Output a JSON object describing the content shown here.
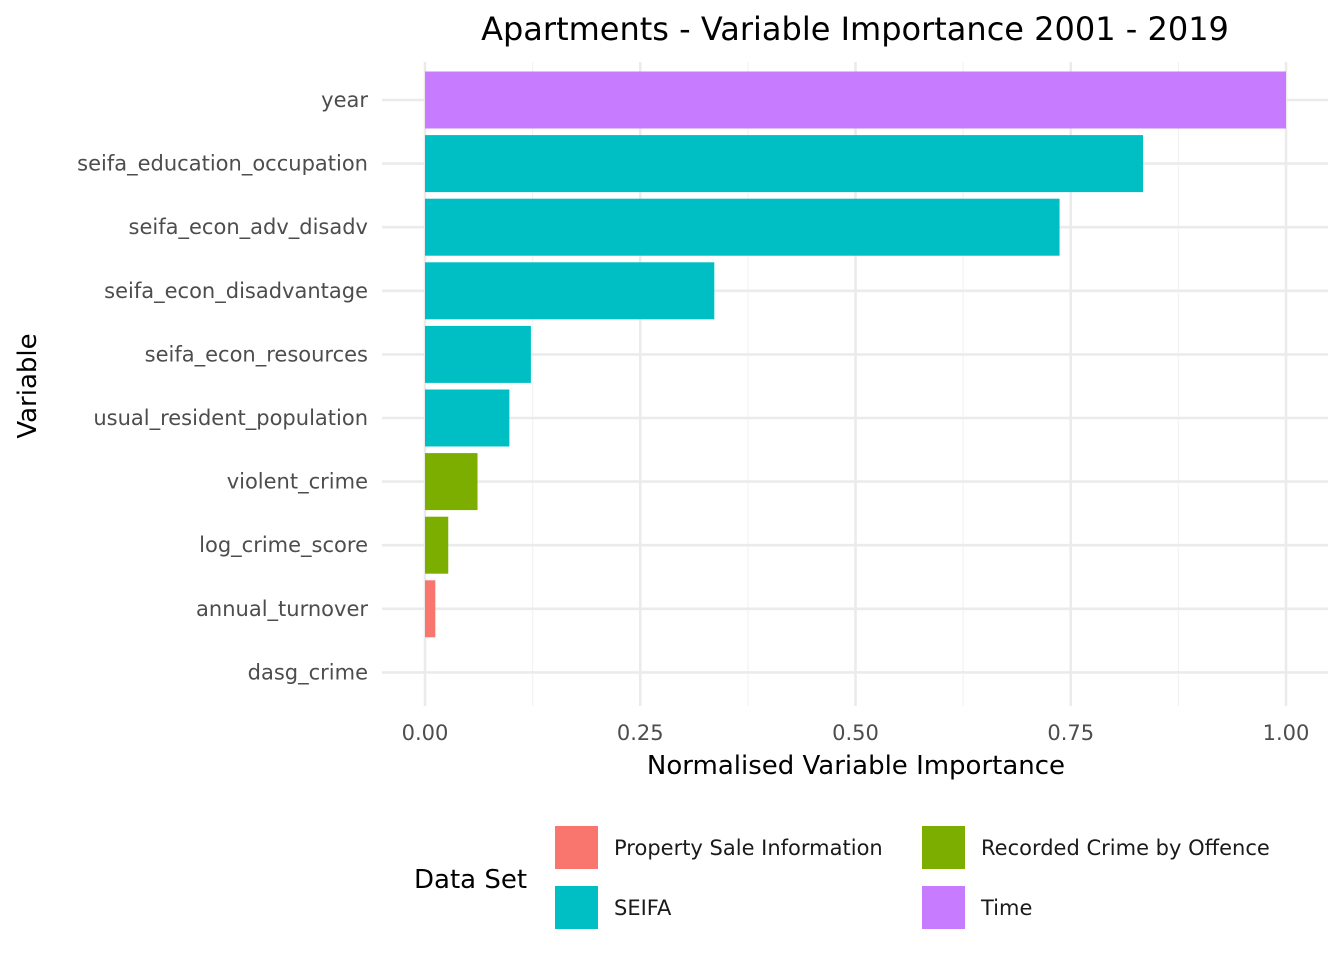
{
  "chart_data": {
    "type": "bar",
    "orientation": "horizontal",
    "title": "Apartments - Variable Importance 2001 - 2019",
    "xlabel": "Normalised Variable Importance",
    "ylabel": "Variable",
    "xlim": [
      0,
      1
    ],
    "xticks": [
      0.0,
      0.25,
      0.5,
      0.75,
      1.0
    ],
    "xtick_labels": [
      "0.00",
      "0.25",
      "0.50",
      "0.75",
      "1.00"
    ],
    "grid": true,
    "legend_position": "bottom",
    "legend_title": "Data Set",
    "groups": [
      {
        "name": "Property Sale Information",
        "color": "#F8766D"
      },
      {
        "name": "Recorded Crime by Offence",
        "color": "#7CAE00"
      },
      {
        "name": "SEIFA",
        "color": "#00BFC4"
      },
      {
        "name": "Time",
        "color": "#C77CFF"
      }
    ],
    "bars": [
      {
        "label": "year",
        "value": 1.0,
        "group": "Time"
      },
      {
        "label": "seifa_education_occupation",
        "value": 0.834,
        "group": "SEIFA"
      },
      {
        "label": "seifa_econ_adv_disadv",
        "value": 0.737,
        "group": "SEIFA"
      },
      {
        "label": "seifa_econ_disadvantage",
        "value": 0.336,
        "group": "SEIFA"
      },
      {
        "label": "seifa_econ_resources",
        "value": 0.123,
        "group": "SEIFA"
      },
      {
        "label": "usual_resident_population",
        "value": 0.098,
        "group": "SEIFA"
      },
      {
        "label": "violent_crime",
        "value": 0.061,
        "group": "Recorded Crime by Offence"
      },
      {
        "label": "log_crime_score",
        "value": 0.027,
        "group": "Recorded Crime by Offence"
      },
      {
        "label": "annual_turnover",
        "value": 0.012,
        "group": "Property Sale Information"
      },
      {
        "label": "dasg_crime",
        "value": 0.0,
        "group": "Recorded Crime by Offence"
      }
    ]
  }
}
